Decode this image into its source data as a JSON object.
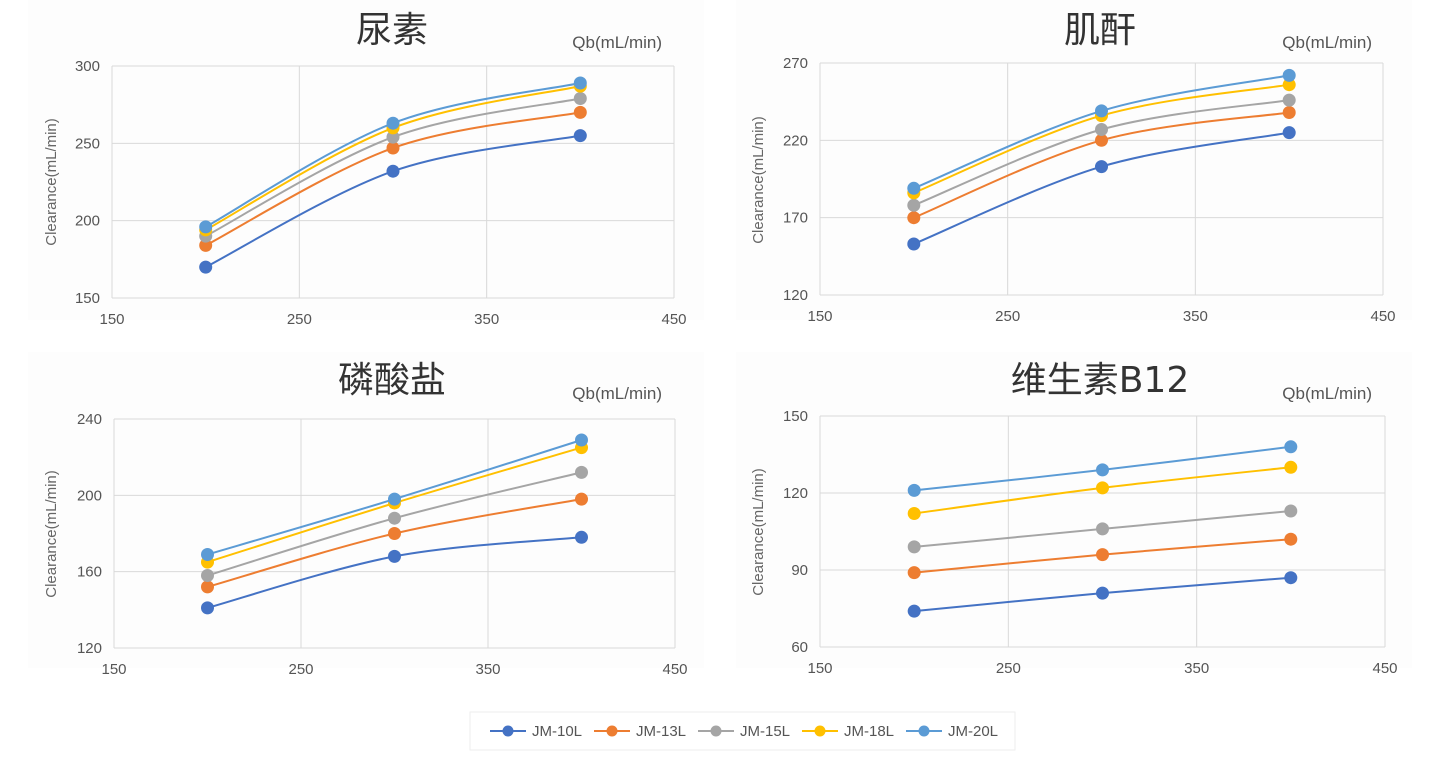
{
  "colors": [
    "#4472c4",
    "#ed7d31",
    "#a5a5a5",
    "#ffc000",
    "#5b9bd5"
  ],
  "legend": [
    "JM-10L",
    "JM-13L",
    "JM-15L",
    "JM-18L",
    "JM-20L"
  ],
  "chart_data": [
    {
      "type": "line",
      "title": "尿素",
      "xlabel": "Qb(mL/min)",
      "ylabel": "Clearance(mL/min)",
      "xlim": [
        150,
        450
      ],
      "xticks": [
        "150",
        "250",
        "350",
        "450"
      ],
      "ylim": [
        150,
        300
      ],
      "yticks": [
        "150",
        "200",
        "250",
        "300"
      ],
      "x": [
        200,
        300,
        400
      ],
      "series": [
        {
          "name": "JM-10L",
          "values": [
            170,
            232,
            255
          ]
        },
        {
          "name": "JM-13L",
          "values": [
            184,
            247,
            270
          ]
        },
        {
          "name": "JM-15L",
          "values": [
            190,
            254,
            279
          ]
        },
        {
          "name": "JM-18L",
          "values": [
            194,
            260,
            287
          ]
        },
        {
          "name": "JM-20L",
          "values": [
            196,
            263,
            289
          ]
        }
      ]
    },
    {
      "type": "line",
      "title": "肌酐",
      "xlabel": "Qb(mL/min)",
      "ylabel": "Clearance(mL/min)",
      "xlim": [
        150,
        450
      ],
      "xticks": [
        "150",
        "250",
        "350",
        "450"
      ],
      "ylim": [
        120,
        270
      ],
      "yticks": [
        "120",
        "170",
        "220",
        "270"
      ],
      "x": [
        200,
        300,
        400
      ],
      "series": [
        {
          "name": "JM-10L",
          "values": [
            153,
            203,
            225
          ]
        },
        {
          "name": "JM-13L",
          "values": [
            170,
            220,
            238
          ]
        },
        {
          "name": "JM-15L",
          "values": [
            178,
            227,
            246
          ]
        },
        {
          "name": "JM-18L",
          "values": [
            186,
            236,
            256
          ]
        },
        {
          "name": "JM-20L",
          "values": [
            189,
            239,
            262
          ]
        }
      ]
    },
    {
      "type": "line",
      "title": "磷酸盐",
      "xlabel": "Qb(mL/min)",
      "ylabel": "Clearance(mL/min)",
      "xlim": [
        150,
        450
      ],
      "xticks": [
        "150",
        "250",
        "350",
        "450"
      ],
      "ylim": [
        120,
        240
      ],
      "yticks": [
        "120",
        "160",
        "200",
        "240"
      ],
      "x": [
        200,
        300,
        400
      ],
      "series": [
        {
          "name": "JM-10L",
          "values": [
            141,
            168,
            178
          ]
        },
        {
          "name": "JM-13L",
          "values": [
            152,
            180,
            198
          ]
        },
        {
          "name": "JM-15L",
          "values": [
            158,
            188,
            212
          ]
        },
        {
          "name": "JM-18L",
          "values": [
            165,
            196,
            225
          ]
        },
        {
          "name": "JM-20L",
          "values": [
            169,
            198,
            229
          ]
        }
      ]
    },
    {
      "type": "line",
      "title": "维生素B12",
      "xlabel": "Qb(mL/min)",
      "ylabel": "Clearance(mL/min)",
      "xlim": [
        150,
        450
      ],
      "xticks": [
        "150",
        "250",
        "350",
        "450"
      ],
      "ylim": [
        60,
        150
      ],
      "yticks": [
        "60",
        "90",
        "120",
        "150"
      ],
      "x": [
        200,
        300,
        400
      ],
      "series": [
        {
          "name": "JM-10L",
          "values": [
            74,
            81,
            87
          ]
        },
        {
          "name": "JM-13L",
          "values": [
            89,
            96,
            102
          ]
        },
        {
          "name": "JM-15L",
          "values": [
            99,
            106,
            113
          ]
        },
        {
          "name": "JM-18L",
          "values": [
            112,
            122,
            130
          ]
        },
        {
          "name": "JM-20L",
          "values": [
            121,
            129,
            138
          ]
        }
      ]
    }
  ]
}
